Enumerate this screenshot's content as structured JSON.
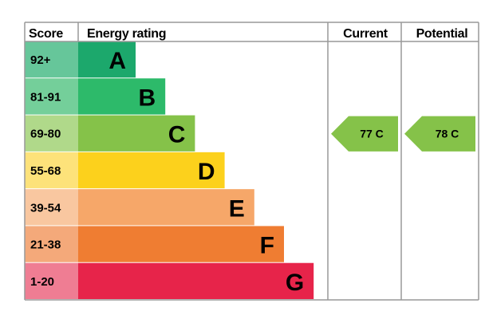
{
  "chart_data": {
    "type": "table",
    "headers": {
      "score": "Score",
      "rating": "Energy rating",
      "current": "Current",
      "potential": "Potential"
    },
    "bands": [
      {
        "range": "92+",
        "letter": "A",
        "min": 92,
        "max": 100,
        "color": "#1ca86c",
        "score_bg": "#66c69a"
      },
      {
        "range": "81-91",
        "letter": "B",
        "min": 81,
        "max": 91,
        "color": "#2dba6a",
        "score_bg": "#74cf9a"
      },
      {
        "range": "69-80",
        "letter": "C",
        "min": 69,
        "max": 80,
        "color": "#85c249",
        "score_bg": "#b0d98a"
      },
      {
        "range": "55-68",
        "letter": "D",
        "min": 55,
        "max": 68,
        "color": "#fcd11c",
        "score_bg": "#fde27a"
      },
      {
        "range": "39-54",
        "letter": "E",
        "min": 39,
        "max": 54,
        "color": "#f6a769",
        "score_bg": "#f9c7a0"
      },
      {
        "range": "21-38",
        "letter": "F",
        "min": 21,
        "max": 38,
        "color": "#ef7d32",
        "score_bg": "#f4a97a"
      },
      {
        "range": "1-20",
        "letter": "G",
        "min": 1,
        "max": 20,
        "color": "#e7244a",
        "score_bg": "#ef7d93"
      }
    ],
    "current": {
      "value": 77,
      "letter": "C",
      "label": "77  C",
      "color": "#85c249"
    },
    "potential": {
      "value": 78,
      "letter": "C",
      "label": "78  C",
      "color": "#85c249"
    }
  }
}
